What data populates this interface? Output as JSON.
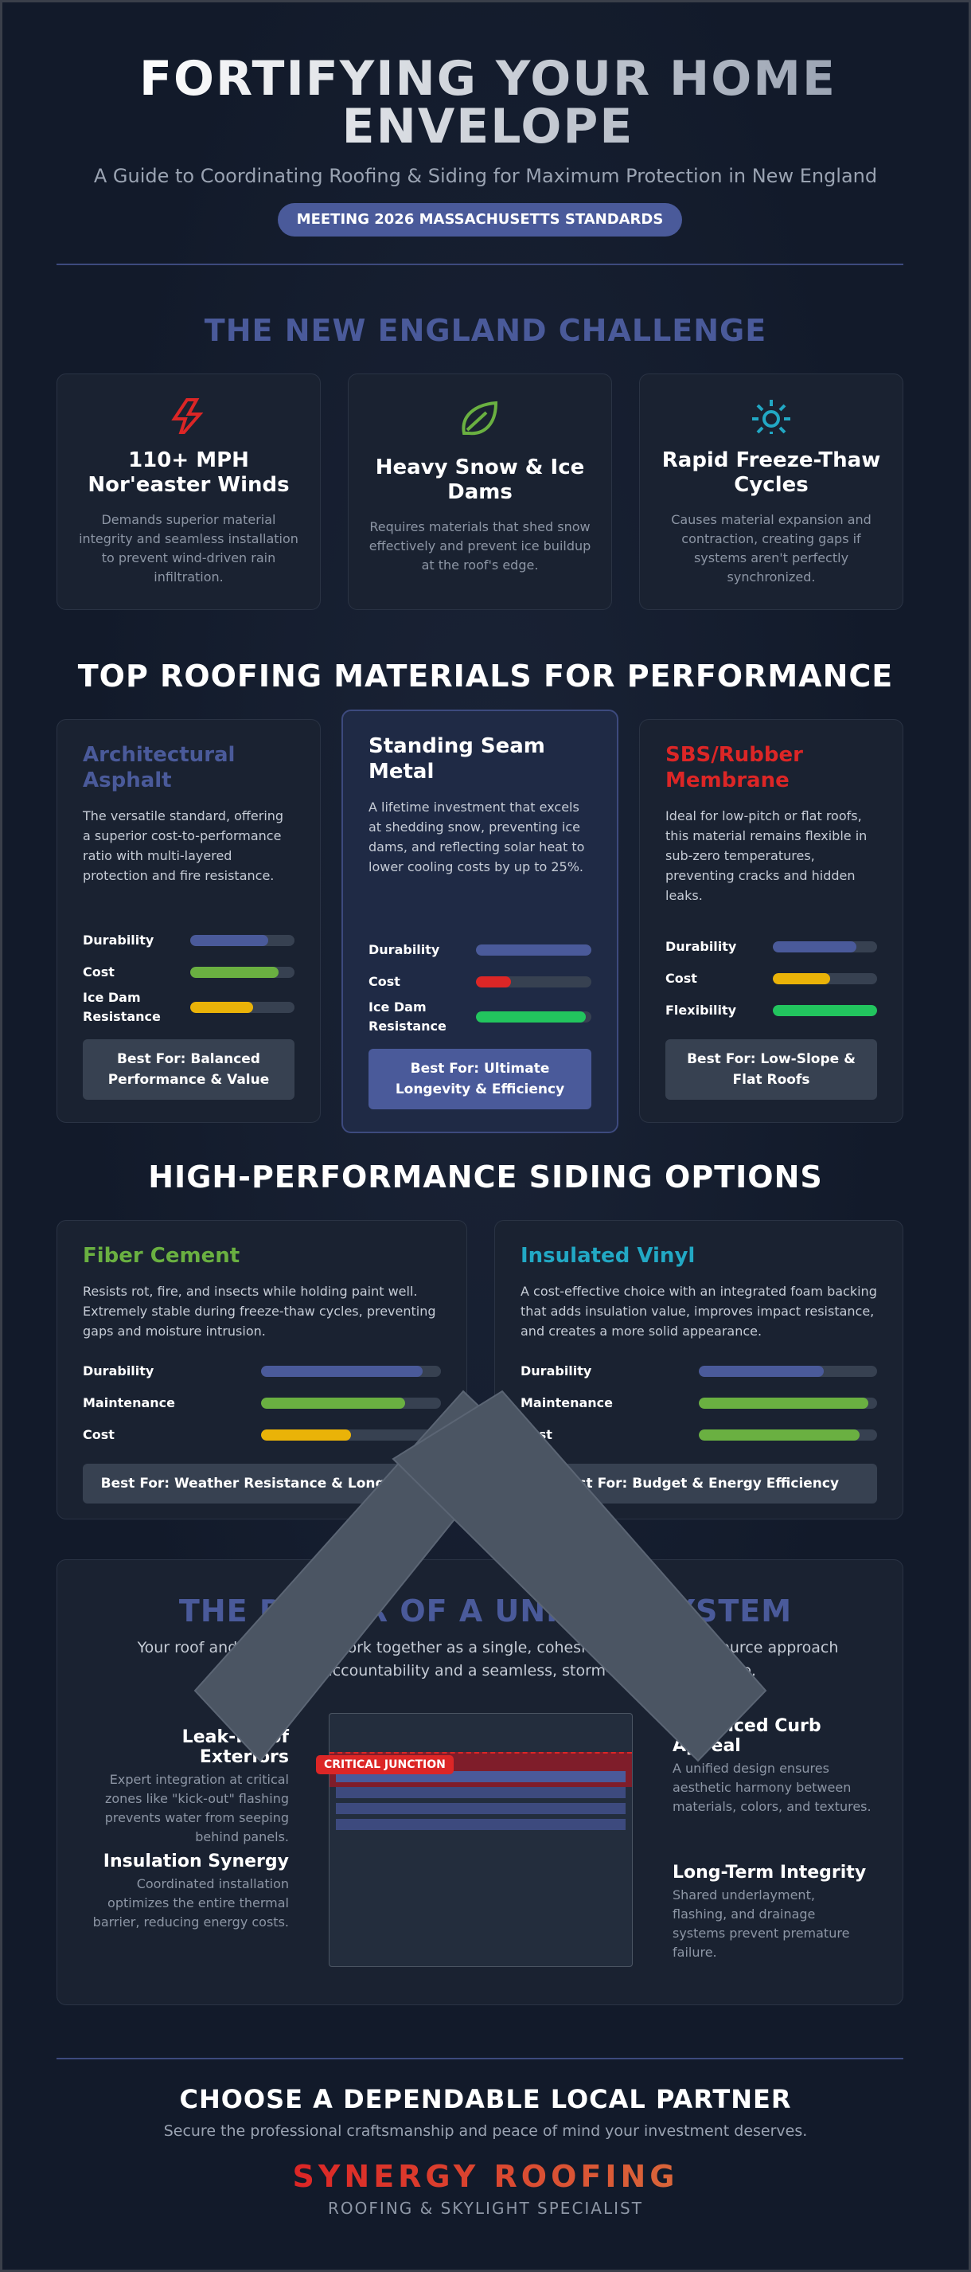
{
  "header": {
    "title": "FORTIFYING YOUR HOME ENVELOPE",
    "subtitle": "A Guide to Coordinating Roofing & Siding for Maximum Protection in New England",
    "badge": "MEETING 2026 MASSACHUSETTS STANDARDS"
  },
  "challenge": {
    "heading": "THE NEW ENGLAND CHALLENGE",
    "cards": [
      {
        "title": "110+ MPH Nor'easter Winds",
        "text": "Demands superior material integrity and seamless installation to prevent wind-driven rain infiltration."
      },
      {
        "title": "Heavy Snow & Ice Dams",
        "text": "Requires materials that shed snow effectively and prevent ice buildup at the roof's edge."
      },
      {
        "title": "Rapid Freeze-Thaw Cycles",
        "text": "Causes material expansion and contraction, creating gaps if systems aren't perfectly synchronized."
      }
    ]
  },
  "roofing": {
    "heading": "TOP ROOFING MATERIALS FOR PERFORMANCE",
    "cards": [
      {
        "title": "Architectural Asphalt",
        "text": "The versatile standard, offering a superior cost-to-performance ratio with multi-layered protection and fire resistance.",
        "ratings": [
          {
            "label": "Durability",
            "value": 75,
            "color": "#4a5a9a"
          },
          {
            "label": "Cost",
            "value": 85,
            "color": "#6ab041"
          },
          {
            "label": "Ice Dam Resistance",
            "value": 60,
            "color": "#eab308"
          }
        ],
        "best_for": "Best For: Balanced Performance & Value"
      },
      {
        "title": "Standing Seam Metal",
        "text": "A lifetime investment that excels at shedding snow, preventing ice dams, and reflecting solar heat to lower cooling costs by up to 25%.",
        "ratings": [
          {
            "label": "Durability",
            "value": 100,
            "color": "#4a5a9a"
          },
          {
            "label": "Cost",
            "value": 30,
            "color": "#dc2626"
          },
          {
            "label": "Ice Dam Resistance",
            "value": 95,
            "color": "#22c55e"
          }
        ],
        "best_for": "Best For: Ultimate Longevity & Efficiency"
      },
      {
        "title": "SBS/Rubber Membrane",
        "text": "Ideal for low-pitch or flat roofs, this material remains flexible in sub-zero temperatures, preventing cracks and hidden leaks.",
        "ratings": [
          {
            "label": "Durability",
            "value": 80,
            "color": "#4a5a9a"
          },
          {
            "label": "Cost",
            "value": 55,
            "color": "#eab308"
          },
          {
            "label": "Flexibility",
            "value": 100,
            "color": "#22c55e"
          }
        ],
        "best_for": "Best For: Low-Slope & Flat Roofs"
      }
    ]
  },
  "siding": {
    "heading": "HIGH-PERFORMANCE SIDING OPTIONS",
    "cards": [
      {
        "title": "Fiber Cement",
        "text": "Resists rot, fire, and insects while holding paint well. Extremely stable during freeze-thaw cycles, preventing gaps and moisture intrusion.",
        "ratings": [
          {
            "label": "Durability",
            "value": 90,
            "color": "#4a5a9a"
          },
          {
            "label": "Maintenance",
            "value": 80,
            "color": "#6ab041"
          },
          {
            "label": "Cost",
            "value": 50,
            "color": "#eab308"
          }
        ],
        "best_for": "Best For: Weather Resistance & Longevity"
      },
      {
        "title": "Insulated Vinyl",
        "text": "A cost-effective choice with an integrated foam backing that adds insulation value, improves impact resistance, and creates a more solid appearance.",
        "ratings": [
          {
            "label": "Durability",
            "value": 70,
            "color": "#4a5a9a"
          },
          {
            "label": "Maintenance",
            "value": 95,
            "color": "#6ab041"
          },
          {
            "label": "Cost",
            "value": 90,
            "color": "#6ab041"
          }
        ],
        "best_for": "Best For: Budget & Energy Efficiency"
      }
    ]
  },
  "unified": {
    "heading": "THE POWER OF A UNIFIED SYSTEM",
    "text": "Your roof and siding must work together as a single, cohesive unit. A single-source approach ensures total accountability and a seamless, storm-resistant envelope.",
    "left": [
      {
        "title": "Leak-Proof Exteriors",
        "text": "Expert integration at critical zones like \"kick-out\" flashing prevents water from seeping behind panels."
      },
      {
        "title": "Insulation Synergy",
        "text": "Coordinated installation optimizes the entire thermal barrier, reducing energy costs."
      }
    ],
    "right": [
      {
        "title": "Enhanced Curb Appeal",
        "text": "A unified design ensures aesthetic harmony between materials, colors, and textures."
      },
      {
        "title": "Long-Term Integrity",
        "text": "Shared underlayment, flashing, and drainage systems prevent premature failure."
      }
    ],
    "junction_label": "CRITICAL JUNCTION"
  },
  "footer": {
    "heading": "CHOOSE A DEPENDABLE LOCAL PARTNER",
    "text": "Secure the professional craftsmanship and peace of mind your investment deserves.",
    "brand": "SYNERGY ROOFING",
    "tagline": "ROOFING & SKYLIGHT SPECIALIST"
  }
}
